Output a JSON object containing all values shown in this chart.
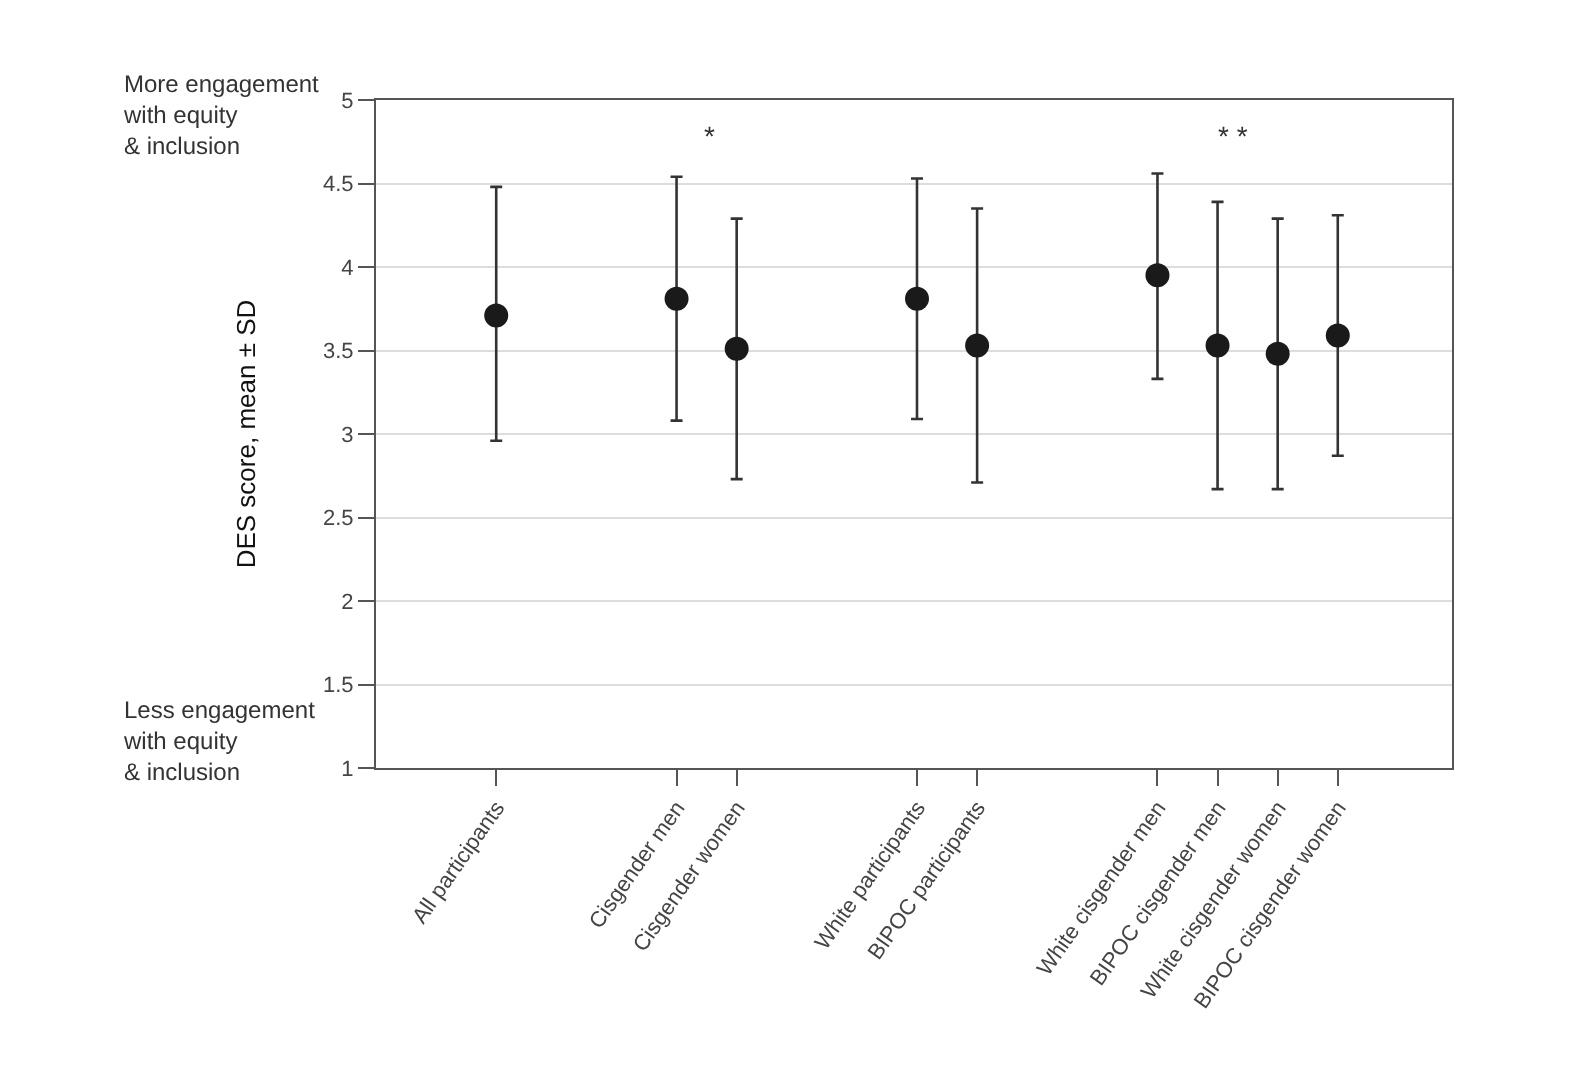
{
  "chart_data": {
    "type": "scatter",
    "ylabel": "DES score, mean ± SD",
    "annotations": [
      "More engagement\nwith equity\n& inclusion",
      "Less engagement\nwith equity\n& inclusion",
      "*",
      "* *"
    ],
    "categories": [
      "All participants",
      null,
      null,
      "Cisgender men",
      "Cisgender women",
      null,
      null,
      "White participants",
      "BIPOC participants",
      null,
      null,
      "White cisgender men",
      "BIPOC cisgender men",
      "White cisgender women",
      "BIPOC cisgender women"
    ],
    "series": [
      {
        "color": "#1a1a1a",
        "values": [
          3.71,
          null,
          null,
          3.81,
          3.51,
          null,
          null,
          3.81,
          3.53,
          null,
          null,
          3.95,
          3.53,
          3.48,
          3.59
        ],
        "errors": [
          [
            2.96,
            4.48
          ],
          null,
          null,
          [
            3.08,
            4.54
          ],
          [
            2.73,
            4.29
          ],
          null,
          null,
          [
            3.09,
            4.53
          ],
          [
            2.71,
            4.35
          ],
          null,
          null,
          [
            3.33,
            4.56
          ],
          [
            2.67,
            4.39
          ],
          [
            2.67,
            4.29
          ],
          [
            2.87,
            4.31
          ]
        ]
      }
    ],
    "ylim": [
      1,
      5
    ],
    "yticks": [
      1,
      1.5,
      2,
      2.5,
      3,
      3.5,
      4,
      4.5,
      5
    ],
    "grid": "y",
    "marker": "circle"
  }
}
